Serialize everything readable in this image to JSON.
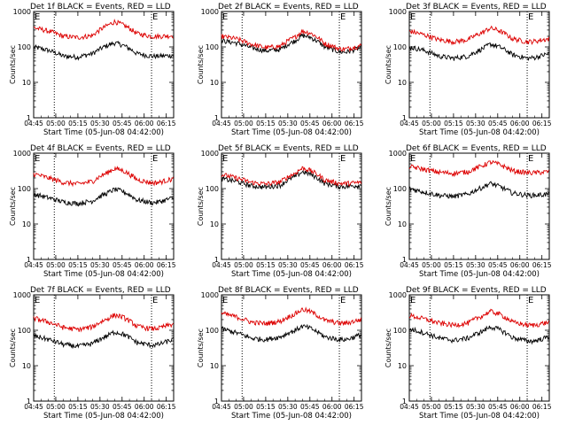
{
  "figure": {
    "colors": {
      "events": "#000000",
      "lld": "#dd0000",
      "marker_lines": "#000000"
    },
    "shared": {
      "xlabel": "Start Time (05-Jun-08 04:42:00)",
      "ylabel": "Counts/sec",
      "yscale": "log",
      "ylim": [
        1,
        1000
      ],
      "y_ticklabels": [
        "1",
        "10",
        "100",
        "1000"
      ],
      "x_ticklabels": [
        "04:45",
        "05:00",
        "05:15",
        "05:30",
        "05:45",
        "06:00",
        "06:15"
      ],
      "x_range": [
        "04:45",
        "06:20"
      ],
      "marker_label": "E",
      "marker_times": [
        "04:45",
        "06:05"
      ],
      "dotted_times": [
        "04:59",
        "06:05"
      ]
    }
  },
  "chart_data": [
    {
      "type": "line",
      "title": "Det 1f BLACK = Events, RED = LLD",
      "xlabel": "Start Time (05-Jun-08 04:42:00)",
      "ylabel": "Counts/sec",
      "ylim": [
        1,
        1000
      ],
      "x": [
        "04:45",
        "04:55",
        "05:05",
        "05:15",
        "05:25",
        "05:35",
        "05:40",
        "05:45",
        "05:55",
        "06:05",
        "06:10",
        "06:20"
      ],
      "series": [
        {
          "name": "Events",
          "values": [
            100,
            80,
            55,
            52,
            65,
            110,
            130,
            115,
            65,
            55,
            55,
            58
          ]
        },
        {
          "name": "LLD",
          "values": [
            350,
            280,
            200,
            185,
            210,
            400,
            520,
            430,
            240,
            200,
            200,
            210
          ]
        }
      ]
    },
    {
      "type": "line",
      "title": "Det 2f BLACK = Events, RED = LLD",
      "xlabel": "Start Time (05-Jun-08 04:42:00)",
      "ylabel": "Counts/sec",
      "ylim": [
        1,
        1000
      ],
      "x": [
        "04:45",
        "04:55",
        "05:05",
        "05:15",
        "05:25",
        "05:35",
        "05:40",
        "05:45",
        "05:55",
        "06:05",
        "06:10",
        "06:20"
      ],
      "series": [
        {
          "name": "Events",
          "values": [
            150,
            130,
            95,
            78,
            85,
            150,
            210,
            190,
            100,
            72,
            72,
            95
          ]
        },
        {
          "name": "LLD",
          "values": [
            200,
            170,
            120,
            95,
            105,
            190,
            280,
            250,
            125,
            88,
            88,
            110
          ]
        }
      ]
    },
    {
      "type": "line",
      "title": "Det 3f BLACK = Events, RED = LLD",
      "xlabel": "Start Time (05-Jun-08 04:42:00)",
      "ylabel": "Counts/sec",
      "ylim": [
        1,
        1000
      ],
      "x": [
        "04:45",
        "04:55",
        "05:05",
        "05:15",
        "05:25",
        "05:35",
        "05:40",
        "05:45",
        "05:55",
        "06:05",
        "06:10",
        "06:20"
      ],
      "series": [
        {
          "name": "Events",
          "values": [
            100,
            80,
            55,
            48,
            55,
            90,
            120,
            105,
            60,
            48,
            50,
            65
          ]
        },
        {
          "name": "LLD",
          "values": [
            280,
            220,
            160,
            140,
            160,
            260,
            340,
            300,
            170,
            140,
            145,
            170
          ]
        }
      ]
    },
    {
      "type": "line",
      "title": "Det 4f BLACK = Events, RED = LLD",
      "xlabel": "Start Time (05-Jun-08 04:42:00)",
      "ylabel": "Counts/sec",
      "ylim": [
        1,
        1000
      ],
      "x": [
        "04:45",
        "04:55",
        "05:05",
        "05:15",
        "05:25",
        "05:35",
        "05:40",
        "05:45",
        "05:55",
        "06:05",
        "06:10",
        "06:20"
      ],
      "series": [
        {
          "name": "Events",
          "values": [
            70,
            55,
            42,
            38,
            45,
            75,
            95,
            85,
            48,
            40,
            42,
            55
          ]
        },
        {
          "name": "LLD",
          "values": [
            260,
            200,
            150,
            135,
            160,
            280,
            370,
            330,
            180,
            145,
            150,
            190
          ]
        }
      ]
    },
    {
      "type": "line",
      "title": "Det 5f BLACK = Events, RED = LLD",
      "xlabel": "Start Time (05-Jun-08 04:42:00)",
      "ylabel": "Counts/sec",
      "ylim": [
        1,
        1000
      ],
      "x": [
        "04:45",
        "04:55",
        "05:05",
        "05:15",
        "05:25",
        "05:35",
        "05:40",
        "05:45",
        "05:55",
        "06:05",
        "06:10",
        "06:20"
      ],
      "series": [
        {
          "name": "Events",
          "values": [
            190,
            160,
            120,
            110,
            125,
            220,
            300,
            260,
            140,
            115,
            115,
            125
          ]
        },
        {
          "name": "LLD",
          "values": [
            250,
            200,
            150,
            135,
            155,
            270,
            380,
            330,
            175,
            140,
            140,
            150
          ]
        }
      ]
    },
    {
      "type": "line",
      "title": "Det 6f BLACK = Events, RED = LLD",
      "xlabel": "Start Time (05-Jun-08 04:42:00)",
      "ylabel": "Counts/sec",
      "ylim": [
        1,
        1000
      ],
      "x": [
        "04:45",
        "04:55",
        "05:05",
        "05:15",
        "05:25",
        "05:35",
        "05:40",
        "05:45",
        "05:55",
        "06:05",
        "06:10",
        "06:20"
      ],
      "series": [
        {
          "name": "Events",
          "values": [
            100,
            80,
            65,
            60,
            70,
            110,
            140,
            120,
            75,
            65,
            65,
            70
          ]
        },
        {
          "name": "LLD",
          "values": [
            420,
            350,
            290,
            270,
            300,
            450,
            560,
            500,
            320,
            280,
            280,
            300
          ]
        }
      ]
    },
    {
      "type": "line",
      "title": "Det 7f BLACK = Events, RED = LLD",
      "xlabel": "Start Time (05-Jun-08 04:42:00)",
      "ylabel": "Counts/sec",
      "ylim": [
        1,
        1000
      ],
      "x": [
        "04:45",
        "04:55",
        "05:05",
        "05:15",
        "05:25",
        "05:35",
        "05:40",
        "05:45",
        "05:55",
        "06:05",
        "06:10",
        "06:20"
      ],
      "series": [
        {
          "name": "Events",
          "values": [
            70,
            55,
            40,
            35,
            42,
            70,
            90,
            80,
            45,
            38,
            40,
            55
          ]
        },
        {
          "name": "LLD",
          "values": [
            220,
            170,
            120,
            105,
            125,
            210,
            270,
            240,
            130,
            110,
            115,
            150
          ]
        }
      ]
    },
    {
      "type": "line",
      "title": "Det 8f BLACK = Events, RED = LLD",
      "xlabel": "Start Time (05-Jun-08 04:42:00)",
      "ylabel": "Counts/sec",
      "ylim": [
        1,
        1000
      ],
      "x": [
        "04:45",
        "04:55",
        "05:05",
        "05:15",
        "05:25",
        "05:35",
        "05:40",
        "05:45",
        "05:55",
        "06:05",
        "06:10",
        "06:20"
      ],
      "series": [
        {
          "name": "Events",
          "values": [
            110,
            85,
            60,
            55,
            65,
            100,
            130,
            115,
            65,
            55,
            55,
            75
          ]
        },
        {
          "name": "LLD",
          "values": [
            300,
            240,
            170,
            155,
            180,
            290,
            390,
            340,
            190,
            160,
            160,
            200
          ]
        }
      ]
    },
    {
      "type": "line",
      "title": "Det 9f BLACK = Events, RED = LLD",
      "xlabel": "Start Time (05-Jun-08 04:42:00)",
      "ylabel": "Counts/sec",
      "ylim": [
        1,
        1000
      ],
      "x": [
        "04:45",
        "04:55",
        "05:05",
        "05:15",
        "05:25",
        "05:35",
        "05:40",
        "05:45",
        "05:55",
        "06:05",
        "06:10",
        "06:20"
      ],
      "series": [
        {
          "name": "Events",
          "values": [
            110,
            85,
            60,
            52,
            60,
            95,
            125,
            110,
            62,
            50,
            50,
            65
          ]
        },
        {
          "name": "LLD",
          "values": [
            260,
            210,
            160,
            140,
            160,
            260,
            340,
            300,
            170,
            140,
            140,
            170
          ]
        }
      ]
    }
  ]
}
